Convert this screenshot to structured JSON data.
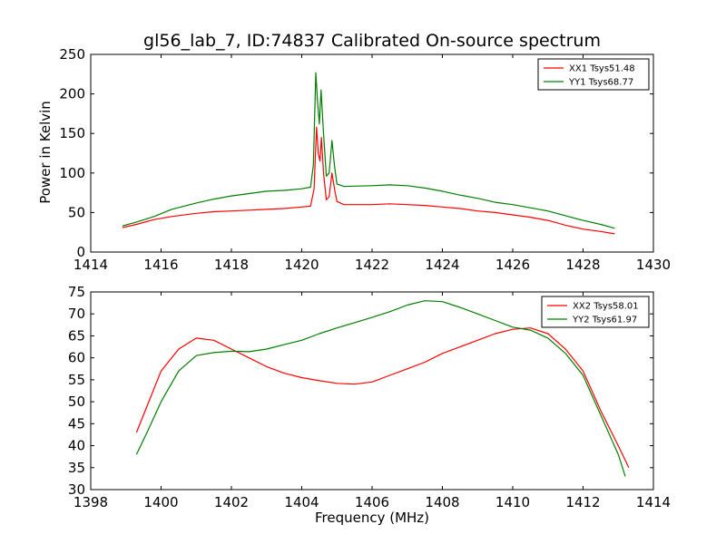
{
  "figure": {
    "title": "gl56_lab_7, ID:74837 Calibrated On-source spectrum",
    "ylabel_top": "Power in Kelvin",
    "xlabel_bottom": "Frequency (MHz)"
  },
  "colors": {
    "red": "#ff0000",
    "green": "#007f00"
  },
  "chart_data": [
    {
      "type": "line",
      "xlim": [
        1414,
        1430
      ],
      "ylim": [
        0,
        250
      ],
      "xticks": [
        1414,
        1416,
        1418,
        1420,
        1422,
        1424,
        1426,
        1428,
        1430
      ],
      "yticks": [
        0,
        50,
        100,
        150,
        200,
        250
      ],
      "ylabel": "Power in Kelvin",
      "legend": "top-right",
      "series": [
        {
          "name": "XX1 Tsys51.48",
          "color": "#ff0000",
          "points": [
            [
              1414.9,
              31
            ],
            [
              1415.3,
              35
            ],
            [
              1415.8,
              41
            ],
            [
              1416.3,
              45
            ],
            [
              1417,
              49
            ],
            [
              1417.5,
              51
            ],
            [
              1418,
              52
            ],
            [
              1418.5,
              53
            ],
            [
              1419,
              54
            ],
            [
              1419.5,
              55
            ],
            [
              1420,
              57
            ],
            [
              1420.25,
              58
            ],
            [
              1420.35,
              80
            ],
            [
              1420.42,
              158
            ],
            [
              1420.47,
              125
            ],
            [
              1420.52,
              115
            ],
            [
              1420.56,
              145
            ],
            [
              1420.62,
              100
            ],
            [
              1420.7,
              66
            ],
            [
              1420.78,
              70
            ],
            [
              1420.86,
              100
            ],
            [
              1420.94,
              78
            ],
            [
              1421,
              64
            ],
            [
              1421.2,
              60
            ],
            [
              1422,
              60
            ],
            [
              1422.5,
              61
            ],
            [
              1423,
              60
            ],
            [
              1423.5,
              59
            ],
            [
              1424,
              57
            ],
            [
              1424.5,
              55
            ],
            [
              1425,
              52
            ],
            [
              1425.5,
              50
            ],
            [
              1426,
              47
            ],
            [
              1426.5,
              44
            ],
            [
              1427,
              40
            ],
            [
              1427.5,
              34
            ],
            [
              1428,
              29
            ],
            [
              1428.5,
              26
            ],
            [
              1428.9,
              23
            ]
          ]
        },
        {
          "name": "YY1 Tsys68.77",
          "color": "#007f00",
          "points": [
            [
              1414.9,
              33
            ],
            [
              1415.3,
              38
            ],
            [
              1415.8,
              45
            ],
            [
              1416.3,
              54
            ],
            [
              1417,
              62
            ],
            [
              1417.5,
              67
            ],
            [
              1418,
              71
            ],
            [
              1418.5,
              74
            ],
            [
              1419,
              77
            ],
            [
              1419.5,
              78
            ],
            [
              1420,
              80
            ],
            [
              1420.25,
              82
            ],
            [
              1420.33,
              110
            ],
            [
              1420.4,
              227
            ],
            [
              1420.45,
              190
            ],
            [
              1420.5,
              162
            ],
            [
              1420.55,
              205
            ],
            [
              1420.62,
              150
            ],
            [
              1420.7,
              96
            ],
            [
              1420.78,
              100
            ],
            [
              1420.86,
              141
            ],
            [
              1420.93,
              110
            ],
            [
              1421,
              86
            ],
            [
              1421.2,
              83
            ],
            [
              1422,
              84
            ],
            [
              1422.5,
              85
            ],
            [
              1423,
              84
            ],
            [
              1423.5,
              81
            ],
            [
              1424,
              77
            ],
            [
              1424.5,
              72
            ],
            [
              1425,
              68
            ],
            [
              1425.5,
              63
            ],
            [
              1426,
              60
            ],
            [
              1426.5,
              56
            ],
            [
              1427,
              52
            ],
            [
              1427.5,
              46
            ],
            [
              1428,
              40
            ],
            [
              1428.5,
              35
            ],
            [
              1428.9,
              30
            ]
          ]
        }
      ]
    },
    {
      "type": "line",
      "xlim": [
        1398,
        1414
      ],
      "ylim": [
        30,
        75
      ],
      "xticks": [
        1398,
        1400,
        1402,
        1404,
        1406,
        1408,
        1410,
        1412,
        1414
      ],
      "yticks": [
        30,
        35,
        40,
        45,
        50,
        55,
        60,
        65,
        70,
        75
      ],
      "xlabel": "Frequency (MHz)",
      "legend": "top-right",
      "series": [
        {
          "name": "XX2 Tsys58.01",
          "color": "#ff0000",
          "points": [
            [
              1399.3,
              43
            ],
            [
              1399.6,
              49
            ],
            [
              1400,
              57
            ],
            [
              1400.5,
              62
            ],
            [
              1401,
              64.5
            ],
            [
              1401.5,
              64
            ],
            [
              1402,
              62
            ],
            [
              1402.5,
              60
            ],
            [
              1403,
              58
            ],
            [
              1403.5,
              56.5
            ],
            [
              1404,
              55.5
            ],
            [
              1404.5,
              54.8
            ],
            [
              1405,
              54.2
            ],
            [
              1405.5,
              54
            ],
            [
              1406,
              54.5
            ],
            [
              1406.5,
              56
            ],
            [
              1407,
              57.5
            ],
            [
              1407.5,
              59
            ],
            [
              1408,
              61
            ],
            [
              1408.5,
              62.5
            ],
            [
              1409,
              64
            ],
            [
              1409.5,
              65.5
            ],
            [
              1410,
              66.5
            ],
            [
              1410.5,
              66.8
            ],
            [
              1411,
              65.5
            ],
            [
              1411.5,
              62
            ],
            [
              1412,
              57
            ],
            [
              1412.5,
              48
            ],
            [
              1413,
              40
            ],
            [
              1413.3,
              35
            ]
          ]
        },
        {
          "name": "YY2 Tsys61.97",
          "color": "#007f00",
          "points": [
            [
              1399.3,
              38
            ],
            [
              1399.6,
              43
            ],
            [
              1400,
              50
            ],
            [
              1400.5,
              57
            ],
            [
              1401,
              60.5
            ],
            [
              1401.5,
              61.2
            ],
            [
              1402,
              61.5
            ],
            [
              1402.5,
              61.4
            ],
            [
              1403,
              62
            ],
            [
              1403.5,
              63
            ],
            [
              1404,
              64
            ],
            [
              1404.5,
              65.5
            ],
            [
              1405,
              66.8
            ],
            [
              1405.5,
              68
            ],
            [
              1406,
              69.2
            ],
            [
              1406.5,
              70.5
            ],
            [
              1407,
              72
            ],
            [
              1407.5,
              73
            ],
            [
              1408,
              72.8
            ],
            [
              1408.5,
              71.5
            ],
            [
              1409,
              70
            ],
            [
              1409.5,
              68.5
            ],
            [
              1410,
              67
            ],
            [
              1410.5,
              66.3
            ],
            [
              1411,
              64.5
            ],
            [
              1411.5,
              61
            ],
            [
              1412,
              56
            ],
            [
              1412.5,
              47
            ],
            [
              1413,
              38
            ],
            [
              1413.2,
              33
            ]
          ]
        }
      ]
    }
  ]
}
